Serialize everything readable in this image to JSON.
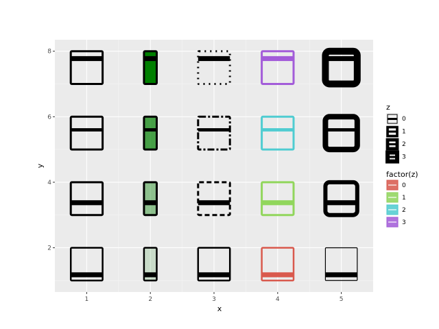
{
  "chart_data": {
    "type": "tile",
    "xlabel": "x",
    "ylabel": "y",
    "x_ticks": [
      "1",
      "2",
      "3",
      "4",
      "5"
    ],
    "y_ticks": [
      "2",
      "4",
      "6",
      "8"
    ],
    "xlim": [
      0.5,
      5.5
    ],
    "ylim": [
      0.65,
      8.35
    ],
    "grid": true,
    "legend_position": "right",
    "panel_background": "#ebebeb",
    "factor_colors": [
      "#d9594d",
      "#91d65c",
      "#4fccd1",
      "#a35cd9"
    ],
    "fill_green": "#007f00",
    "outline_color": "#000000",
    "rows": [
      {
        "z": 0,
        "y": [
          1,
          2
        ],
        "inner_band": [
          1.1,
          1.25
        ]
      },
      {
        "z": 1,
        "y": [
          3,
          4
        ],
        "inner_band": [
          3.3,
          3.45
        ]
      },
      {
        "z": 2,
        "y": [
          5,
          6
        ],
        "inner_band": [
          5.55,
          5.65
        ]
      },
      {
        "z": 3,
        "y": [
          7,
          8
        ],
        "inner_band": [
          7.7,
          7.85
        ]
      }
    ],
    "columns": [
      {
        "x": 1,
        "style": "linewidth",
        "x_range": [
          0.75,
          1.25
        ]
      },
      {
        "x": 2,
        "style": "alpha",
        "x_range": [
          1.9,
          2.1
        ]
      },
      {
        "x": 3,
        "style": "linetype",
        "x_range": [
          2.75,
          3.25
        ]
      },
      {
        "x": 4,
        "style": "color",
        "x_range": [
          3.75,
          4.25
        ]
      },
      {
        "x": 5,
        "style": "size",
        "x_range": [
          4.75,
          5.25
        ]
      }
    ],
    "alpha_levels": [
      0.15,
      0.4,
      0.7,
      1.0
    ],
    "line_widths": [
      2.5,
      3,
      3,
      3
    ],
    "size_widths": [
      1.2,
      6,
      8,
      10
    ],
    "legends": [
      {
        "title": "z",
        "entries": [
          "0",
          "1",
          "2",
          "3"
        ]
      },
      {
        "title": "factor(z)",
        "entries": [
          "0",
          "1",
          "2",
          "3"
        ]
      }
    ]
  }
}
